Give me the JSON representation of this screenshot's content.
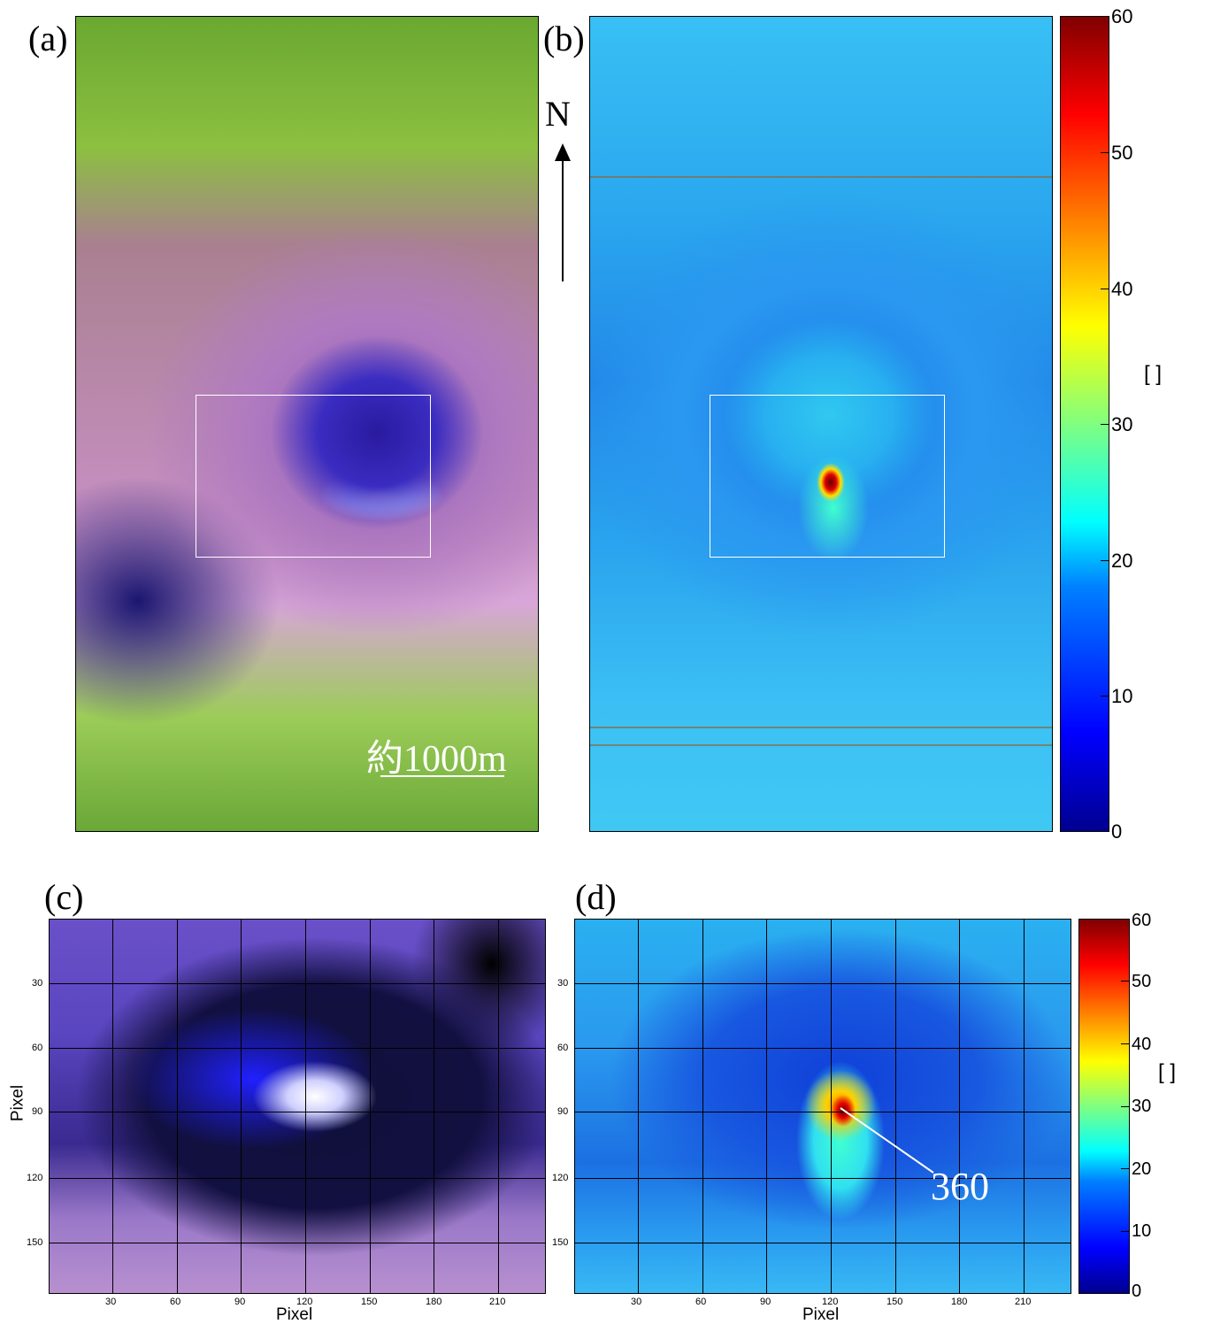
{
  "panels": {
    "a": {
      "label": "(a)",
      "scale_text": "約1000m"
    },
    "b": {
      "label": "(b)",
      "north": "N"
    },
    "c": {
      "label": "(c)"
    },
    "d": {
      "label": "(d)",
      "annotation": "360"
    }
  },
  "colorbar_top": {
    "ticks": [
      "60",
      "50",
      "40",
      "30",
      "20",
      "10",
      "0"
    ],
    "unit": "[ ]"
  },
  "colorbar_bottom": {
    "ticks": [
      "60",
      "50",
      "40",
      "30",
      "20",
      "10",
      "0"
    ],
    "unit": "[ ]"
  },
  "axes_c": {
    "xlabel": "Pixel",
    "ylabel": "Pixel",
    "xticks": [
      "30",
      "60",
      "90",
      "120",
      "150",
      "180",
      "210"
    ],
    "yticks": [
      "30",
      "60",
      "90",
      "120",
      "150"
    ]
  },
  "axes_d": {
    "xlabel": "Pixel",
    "xticks": [
      "30",
      "60",
      "90",
      "120",
      "150",
      "180",
      "210"
    ],
    "yticks": [
      "30",
      "60",
      "90",
      "120",
      "150"
    ]
  },
  "colors": {
    "accent_hot": "#8b0000",
    "roi_box": "#ffffff"
  }
}
